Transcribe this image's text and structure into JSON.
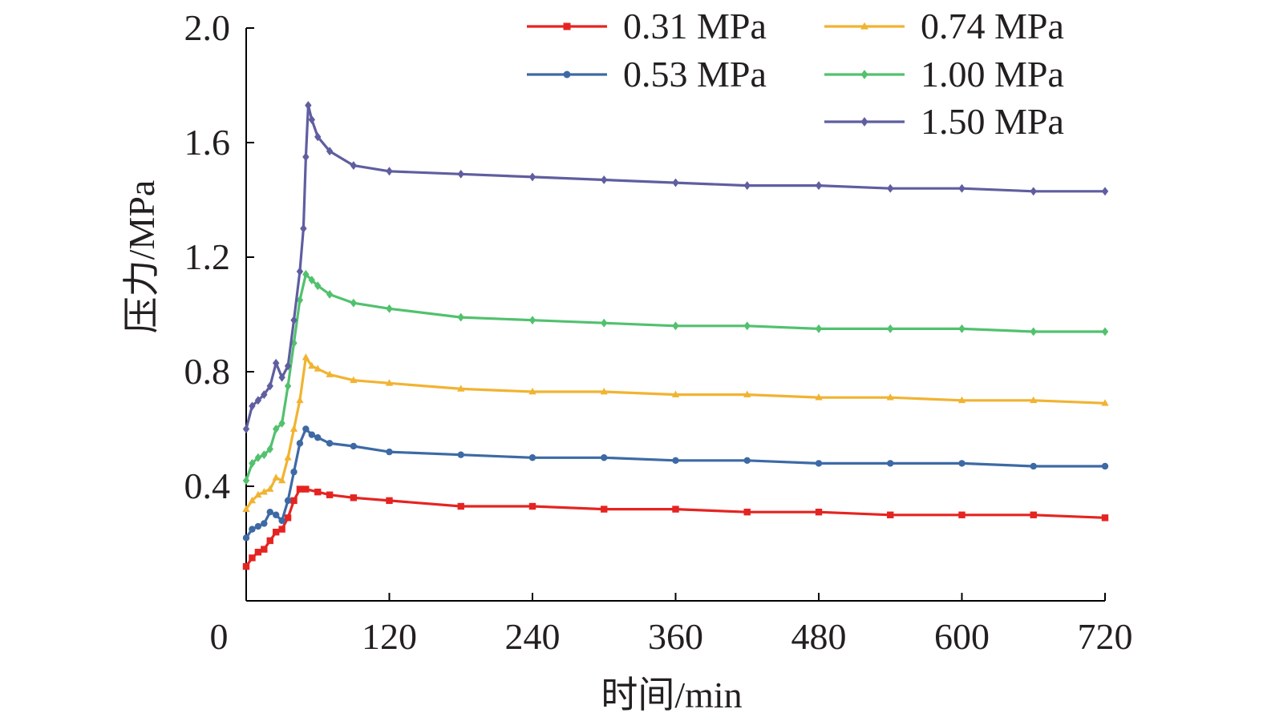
{
  "chart_data": {
    "type": "line",
    "xlabel": "时间/min",
    "ylabel": "压力/MPa",
    "xlim": [
      0,
      720
    ],
    "ylim": [
      0,
      2.0
    ],
    "xticks": [
      "0",
      "120",
      "240",
      "360",
      "480",
      "600",
      "720"
    ],
    "yticks": [
      "0.4",
      "0.8",
      "1.2",
      "1.6",
      "2.0"
    ],
    "grid": false,
    "legend_position": "top-right",
    "series": [
      {
        "name": "0.31 MPa",
        "color": "#e52421",
        "marker": "square",
        "x": [
          0,
          5,
          10,
          15,
          20,
          25,
          30,
          35,
          40,
          45,
          50,
          60,
          70,
          90,
          120,
          180,
          240,
          300,
          360,
          420,
          480,
          540,
          600,
          660,
          720
        ],
        "y": [
          0.12,
          0.15,
          0.17,
          0.18,
          0.21,
          0.24,
          0.25,
          0.29,
          0.35,
          0.39,
          0.39,
          0.38,
          0.37,
          0.36,
          0.35,
          0.33,
          0.33,
          0.32,
          0.32,
          0.31,
          0.31,
          0.3,
          0.3,
          0.3,
          0.29
        ]
      },
      {
        "name": "0.53 MPa",
        "color": "#3d6aa5",
        "marker": "circle",
        "x": [
          0,
          5,
          10,
          15,
          20,
          25,
          30,
          35,
          40,
          45,
          50,
          55,
          60,
          70,
          90,
          120,
          180,
          240,
          300,
          360,
          420,
          480,
          540,
          600,
          660,
          720
        ],
        "y": [
          0.22,
          0.25,
          0.26,
          0.27,
          0.31,
          0.3,
          0.28,
          0.35,
          0.45,
          0.55,
          0.6,
          0.58,
          0.57,
          0.55,
          0.54,
          0.52,
          0.51,
          0.5,
          0.5,
          0.49,
          0.49,
          0.48,
          0.48,
          0.48,
          0.47,
          0.47
        ]
      },
      {
        "name": "0.74 MPa",
        "color": "#f1b331",
        "marker": "triangle",
        "x": [
          0,
          5,
          10,
          15,
          20,
          25,
          30,
          35,
          40,
          45,
          50,
          55,
          60,
          70,
          90,
          120,
          180,
          240,
          300,
          360,
          420,
          480,
          540,
          600,
          660,
          720
        ],
        "y": [
          0.32,
          0.35,
          0.37,
          0.38,
          0.39,
          0.43,
          0.42,
          0.5,
          0.6,
          0.7,
          0.85,
          0.82,
          0.81,
          0.79,
          0.77,
          0.76,
          0.74,
          0.73,
          0.73,
          0.72,
          0.72,
          0.71,
          0.71,
          0.7,
          0.7,
          0.69
        ]
      },
      {
        "name": "1.00 MPa",
        "color": "#52c16e",
        "marker": "diamond",
        "x": [
          0,
          5,
          10,
          15,
          20,
          25,
          30,
          35,
          40,
          45,
          50,
          55,
          60,
          70,
          90,
          120,
          180,
          240,
          300,
          360,
          420,
          480,
          540,
          600,
          660,
          720
        ],
        "y": [
          0.42,
          0.48,
          0.5,
          0.51,
          0.53,
          0.6,
          0.62,
          0.75,
          0.9,
          1.05,
          1.14,
          1.12,
          1.1,
          1.07,
          1.04,
          1.02,
          0.99,
          0.98,
          0.97,
          0.96,
          0.96,
          0.95,
          0.95,
          0.95,
          0.94,
          0.94
        ]
      },
      {
        "name": "1.50 MPa",
        "color": "#5f5ea0",
        "marker": "diamond",
        "x": [
          0,
          5,
          10,
          15,
          20,
          25,
          30,
          35,
          40,
          45,
          48,
          50,
          52,
          55,
          60,
          70,
          90,
          120,
          180,
          240,
          300,
          360,
          420,
          480,
          540,
          600,
          660,
          720
        ],
        "y": [
          0.6,
          0.68,
          0.7,
          0.72,
          0.75,
          0.83,
          0.78,
          0.82,
          0.98,
          1.15,
          1.3,
          1.55,
          1.73,
          1.68,
          1.62,
          1.57,
          1.52,
          1.5,
          1.49,
          1.48,
          1.47,
          1.46,
          1.45,
          1.45,
          1.44,
          1.44,
          1.43,
          1.43
        ]
      }
    ]
  }
}
